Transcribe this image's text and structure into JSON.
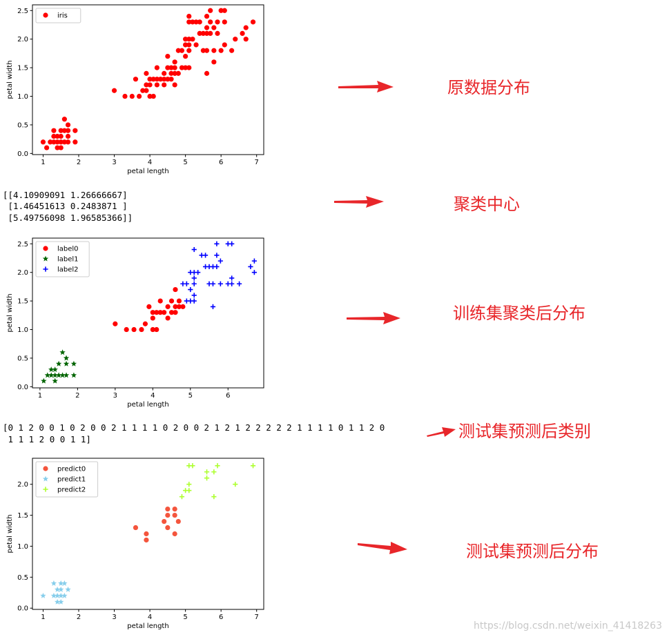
{
  "chart_data": [
    {
      "type": "scatter",
      "title": "",
      "xlabel": "petal length",
      "ylabel": "petal width",
      "xlim": [
        0.7,
        7.2
      ],
      "ylim": [
        -0.02,
        2.6
      ],
      "xticks": [
        1,
        2,
        3,
        4,
        5,
        6,
        7
      ],
      "yticks": [
        0.0,
        0.5,
        1.0,
        1.5,
        2.0,
        2.5
      ],
      "legend_position": "upper-left",
      "series": [
        {
          "name": "iris",
          "marker": "o",
          "color": "#ff0000",
          "points": [
            [
              1.0,
              0.2
            ],
            [
              1.1,
              0.1
            ],
            [
              1.2,
              0.2
            ],
            [
              1.3,
              0.2
            ],
            [
              1.3,
              0.3
            ],
            [
              1.3,
              0.4
            ],
            [
              1.4,
              0.1
            ],
            [
              1.4,
              0.2
            ],
            [
              1.4,
              0.3
            ],
            [
              1.5,
              0.1
            ],
            [
              1.5,
              0.2
            ],
            [
              1.5,
              0.3
            ],
            [
              1.5,
              0.4
            ],
            [
              1.6,
              0.2
            ],
            [
              1.6,
              0.4
            ],
            [
              1.6,
              0.6
            ],
            [
              1.7,
              0.2
            ],
            [
              1.7,
              0.3
            ],
            [
              1.7,
              0.4
            ],
            [
              1.7,
              0.5
            ],
            [
              1.9,
              0.2
            ],
            [
              1.9,
              0.4
            ],
            [
              3.0,
              1.1
            ],
            [
              3.3,
              1.0
            ],
            [
              3.5,
              1.0
            ],
            [
              3.6,
              1.3
            ],
            [
              3.7,
              1.0
            ],
            [
              3.8,
              1.1
            ],
            [
              3.9,
              1.1
            ],
            [
              3.9,
              1.2
            ],
            [
              3.9,
              1.4
            ],
            [
              4.0,
              1.0
            ],
            [
              4.0,
              1.2
            ],
            [
              4.0,
              1.3
            ],
            [
              4.1,
              1.0
            ],
            [
              4.1,
              1.3
            ],
            [
              4.2,
              1.2
            ],
            [
              4.2,
              1.3
            ],
            [
              4.2,
              1.5
            ],
            [
              4.3,
              1.3
            ],
            [
              4.4,
              1.2
            ],
            [
              4.4,
              1.3
            ],
            [
              4.4,
              1.4
            ],
            [
              4.5,
              1.3
            ],
            [
              4.5,
              1.5
            ],
            [
              4.5,
              1.7
            ],
            [
              4.6,
              1.3
            ],
            [
              4.6,
              1.4
            ],
            [
              4.6,
              1.5
            ],
            [
              4.7,
              1.2
            ],
            [
              4.7,
              1.4
            ],
            [
              4.7,
              1.5
            ],
            [
              4.7,
              1.6
            ],
            [
              4.8,
              1.4
            ],
            [
              4.8,
              1.8
            ],
            [
              4.9,
              1.5
            ],
            [
              4.9,
              1.8
            ],
            [
              5.0,
              1.5
            ],
            [
              5.0,
              1.7
            ],
            [
              5.0,
              2.0
            ],
            [
              5.0,
              1.9
            ],
            [
              5.1,
              1.5
            ],
            [
              5.1,
              1.8
            ],
            [
              5.1,
              1.9
            ],
            [
              5.1,
              2.0
            ],
            [
              5.1,
              2.3
            ],
            [
              5.1,
              2.4
            ],
            [
              5.2,
              2.0
            ],
            [
              5.2,
              2.3
            ],
            [
              5.3,
              1.9
            ],
            [
              5.3,
              2.3
            ],
            [
              5.4,
              2.1
            ],
            [
              5.4,
              2.3
            ],
            [
              5.5,
              1.8
            ],
            [
              5.5,
              2.1
            ],
            [
              5.6,
              1.4
            ],
            [
              5.6,
              1.8
            ],
            [
              5.6,
              2.1
            ],
            [
              5.6,
              2.2
            ],
            [
              5.6,
              2.4
            ],
            [
              5.7,
              2.1
            ],
            [
              5.7,
              2.3
            ],
            [
              5.7,
              2.5
            ],
            [
              5.8,
              1.6
            ],
            [
              5.8,
              1.8
            ],
            [
              5.8,
              2.2
            ],
            [
              5.9,
              2.1
            ],
            [
              5.9,
              2.3
            ],
            [
              6.0,
              1.8
            ],
            [
              6.0,
              2.5
            ],
            [
              6.1,
              1.9
            ],
            [
              6.1,
              2.3
            ],
            [
              6.1,
              2.5
            ],
            [
              6.3,
              1.8
            ],
            [
              6.4,
              2.0
            ],
            [
              6.6,
              2.1
            ],
            [
              6.7,
              2.0
            ],
            [
              6.7,
              2.2
            ],
            [
              6.9,
              2.3
            ]
          ]
        }
      ]
    },
    {
      "type": "scatter",
      "title": "",
      "xlabel": "petal length",
      "ylabel": "petal width",
      "xlim": [
        0.8,
        6.95
      ],
      "ylim": [
        -0.02,
        2.6
      ],
      "xticks": [
        1,
        2,
        3,
        4,
        5,
        6
      ],
      "yticks": [
        0.0,
        0.5,
        1.0,
        1.5,
        2.0,
        2.5
      ],
      "legend_position": "upper-left",
      "series": [
        {
          "name": "label0",
          "marker": "o",
          "color": "#ff0000",
          "points": [
            [
              3.0,
              1.1
            ],
            [
              3.3,
              1.0
            ],
            [
              3.5,
              1.0
            ],
            [
              3.7,
              1.0
            ],
            [
              3.8,
              1.1
            ],
            [
              3.9,
              1.4
            ],
            [
              4.0,
              1.2
            ],
            [
              4.0,
              1.3
            ],
            [
              4.0,
              1.0
            ],
            [
              4.1,
              1.0
            ],
            [
              4.1,
              1.3
            ],
            [
              4.2,
              1.3
            ],
            [
              4.2,
              1.5
            ],
            [
              4.3,
              1.3
            ],
            [
              4.4,
              1.2
            ],
            [
              4.4,
              1.4
            ],
            [
              4.5,
              1.3
            ],
            [
              4.5,
              1.5
            ],
            [
              4.6,
              1.3
            ],
            [
              4.6,
              1.4
            ],
            [
              4.6,
              1.7
            ],
            [
              4.7,
              1.4
            ],
            [
              4.7,
              1.5
            ],
            [
              4.8,
              1.4
            ]
          ]
        },
        {
          "name": "label1",
          "marker": "*",
          "color": "#006400",
          "points": [
            [
              1.1,
              0.1
            ],
            [
              1.2,
              0.2
            ],
            [
              1.3,
              0.2
            ],
            [
              1.3,
              0.3
            ],
            [
              1.4,
              0.1
            ],
            [
              1.4,
              0.2
            ],
            [
              1.4,
              0.3
            ],
            [
              1.5,
              0.2
            ],
            [
              1.5,
              0.4
            ],
            [
              1.6,
              0.2
            ],
            [
              1.6,
              0.6
            ],
            [
              1.7,
              0.2
            ],
            [
              1.7,
              0.4
            ],
            [
              1.7,
              0.5
            ],
            [
              1.9,
              0.2
            ],
            [
              1.9,
              0.4
            ]
          ]
        },
        {
          "name": "label2",
          "marker": "+",
          "color": "#0000ff",
          "points": [
            [
              4.8,
              1.8
            ],
            [
              4.9,
              1.5
            ],
            [
              4.9,
              1.8
            ],
            [
              5.0,
              1.5
            ],
            [
              5.0,
              1.7
            ],
            [
              5.0,
              2.0
            ],
            [
              5.1,
              1.5
            ],
            [
              5.1,
              1.6
            ],
            [
              5.1,
              1.8
            ],
            [
              5.1,
              1.9
            ],
            [
              5.1,
              2.0
            ],
            [
              5.1,
              2.4
            ],
            [
              5.2,
              2.0
            ],
            [
              5.3,
              2.3
            ],
            [
              5.4,
              2.1
            ],
            [
              5.4,
              2.3
            ],
            [
              5.5,
              1.8
            ],
            [
              5.5,
              2.1
            ],
            [
              5.6,
              1.4
            ],
            [
              5.6,
              1.8
            ],
            [
              5.6,
              2.1
            ],
            [
              5.7,
              2.1
            ],
            [
              5.7,
              2.3
            ],
            [
              5.7,
              2.5
            ],
            [
              5.8,
              1.8
            ],
            [
              5.8,
              2.2
            ],
            [
              6.0,
              1.8
            ],
            [
              6.0,
              2.5
            ],
            [
              6.1,
              1.8
            ],
            [
              6.1,
              1.9
            ],
            [
              6.1,
              2.5
            ],
            [
              6.3,
              1.8
            ],
            [
              6.6,
              2.1
            ],
            [
              6.7,
              2.0
            ],
            [
              6.7,
              2.2
            ]
          ]
        }
      ]
    },
    {
      "type": "scatter",
      "title": "",
      "xlabel": "petal length",
      "ylabel": "petal width",
      "xlim": [
        0.7,
        7.2
      ],
      "ylim": [
        -0.02,
        2.42
      ],
      "xticks": [
        1,
        2,
        3,
        4,
        5,
        6,
        7
      ],
      "yticks": [
        0.0,
        0.5,
        1.0,
        1.5,
        2.0
      ],
      "legend_position": "upper-left",
      "series": [
        {
          "name": "predict0",
          "marker": "o",
          "color": "#f4553d",
          "points": [
            [
              3.6,
              1.3
            ],
            [
              3.9,
              1.1
            ],
            [
              3.9,
              1.2
            ],
            [
              4.4,
              1.4
            ],
            [
              4.5,
              1.3
            ],
            [
              4.5,
              1.5
            ],
            [
              4.5,
              1.6
            ],
            [
              4.7,
              1.2
            ],
            [
              4.7,
              1.5
            ],
            [
              4.7,
              1.6
            ],
            [
              4.8,
              1.4
            ]
          ]
        },
        {
          "name": "predict1",
          "marker": "*",
          "color": "#87ceeb",
          "points": [
            [
              1.0,
              0.2
            ],
            [
              1.3,
              0.2
            ],
            [
              1.3,
              0.4
            ],
            [
              1.4,
              0.1
            ],
            [
              1.4,
              0.2
            ],
            [
              1.4,
              0.3
            ],
            [
              1.5,
              0.1
            ],
            [
              1.5,
              0.2
            ],
            [
              1.5,
              0.3
            ],
            [
              1.5,
              0.4
            ],
            [
              1.6,
              0.2
            ],
            [
              1.6,
              0.4
            ],
            [
              1.7,
              0.3
            ]
          ]
        },
        {
          "name": "predict2",
          "marker": "+",
          "color": "#adff2f",
          "points": [
            [
              4.9,
              1.8
            ],
            [
              5.0,
              1.9
            ],
            [
              5.1,
              1.9
            ],
            [
              5.1,
              2.0
            ],
            [
              5.1,
              2.3
            ],
            [
              5.2,
              2.3
            ],
            [
              5.6,
              2.1
            ],
            [
              5.6,
              2.2
            ],
            [
              5.8,
              1.8
            ],
            [
              5.8,
              2.2
            ],
            [
              5.9,
              2.3
            ],
            [
              6.4,
              2.0
            ],
            [
              6.9,
              2.3
            ]
          ]
        }
      ]
    }
  ],
  "outputs": {
    "centers": [
      "[[4.10909091 1.26666667]",
      " [1.46451613 0.2483871 ]",
      " [5.49756098 1.96585366]]"
    ],
    "test_labels": [
      "[0 1 2 0 0 1 0 2 0 0 2 1 1 1 1 0 2 0 0 2 1 2 1 2 2 2 2 2 1 1 1 1 0 1 1 2 0",
      " 1 1 1 2 0 0 1 1]"
    ]
  },
  "annotations": {
    "original": "原数据分布",
    "centers": "聚类中心",
    "train_clusters": "训练集聚类后分布",
    "test_labels": "测试集预测后类别",
    "test_distribution": "测试集预测后分布"
  },
  "accent_color": "#e8262a",
  "watermark": "https://blog.csdn.net/weixin_41418263"
}
